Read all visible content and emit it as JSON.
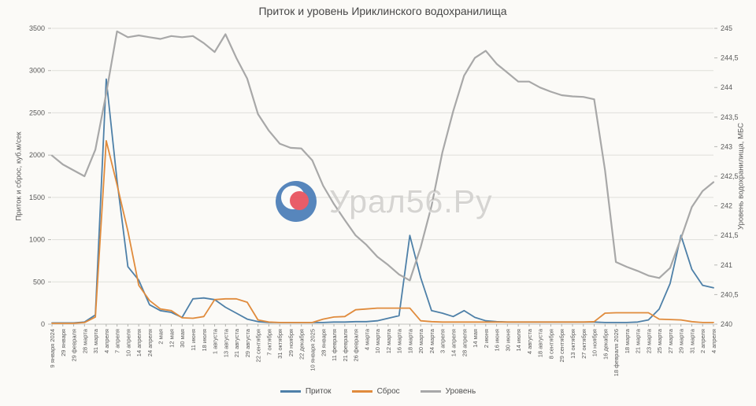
{
  "watermark": {
    "text": "Урал56.Ру",
    "logo": "ural56-logo-icon",
    "logo_colors": {
      "blue": "#4a7db8",
      "white": "#fcfcfb",
      "red": "#e8505c"
    }
  },
  "chart_data": {
    "type": "line",
    "title": "Приток и уровень Ириклинского водохранилища",
    "grid": true,
    "legend_position": "bottom",
    "left_axis": {
      "label": "Приток и сброс, куб.м/сек",
      "min": 0,
      "max": 3500,
      "ticks": [
        "0",
        "500",
        "1000",
        "1500",
        "2000",
        "2500",
        "3000",
        "3500"
      ]
    },
    "right_axis": {
      "label": "Уровень водохранилища, МБС",
      "min": 240,
      "max": 245,
      "ticks": [
        "240",
        "240,5",
        "241",
        "241,5",
        "242",
        "242,5",
        "243",
        "243,5",
        "244",
        "244,5",
        "245"
      ]
    },
    "categories": [
      "9 января 2024",
      "29 января",
      "29 февраля",
      "28 марта",
      "31 марта",
      "4 апреля",
      "7 апреля",
      "10 апреля",
      "14 апреля",
      "24 апреля",
      "2 мая",
      "12 мая",
      "30 мая",
      "11 июня",
      "18 июля",
      "1 августа",
      "13 августа",
      "21 августа",
      "29 августа",
      "22 сентября",
      "7 октября",
      "31 октября",
      "29 ноября",
      "22 декабря",
      "10 января 2025",
      "28 января",
      "11 февраля",
      "21 февраля",
      "26 февраля",
      "4 марта",
      "10 марта",
      "12 марта",
      "16 марта",
      "18 марта",
      "20 марта",
      "24 марта",
      "3 апреля",
      "14 апреля",
      "28 апреля",
      "14 мая",
      "2 июня",
      "16 июня",
      "30 июня",
      "14 июля",
      "4 августа",
      "18 августа",
      "8 сентября",
      "29 сентября",
      "13 октября",
      "27 октября",
      "10 ноября",
      "16 декабря",
      "18 февраля 2026",
      "18 марта",
      "21 марта",
      "23 марта",
      "25 марта",
      "27 марта",
      "29 марта",
      "31 марта",
      "2 апреля",
      "4 апреля"
    ],
    "series": [
      {
        "name": "Приток",
        "axis": "left",
        "color": "#4e80a8",
        "values": [
          15,
          15,
          15,
          25,
          110,
          2900,
          1700,
          680,
          520,
          230,
          160,
          140,
          80,
          300,
          310,
          290,
          200,
          130,
          60,
          30,
          20,
          20,
          20,
          20,
          20,
          20,
          25,
          25,
          30,
          30,
          40,
          70,
          100,
          1050,
          550,
          160,
          130,
          90,
          160,
          80,
          40,
          30,
          25,
          25,
          25,
          25,
          25,
          25,
          25,
          25,
          25,
          20,
          20,
          20,
          25,
          50,
          180,
          480,
          1050,
          650,
          460,
          430
        ]
      },
      {
        "name": "Сброс",
        "axis": "left",
        "color": "#e08b3c",
        "values": [
          10,
          10,
          10,
          20,
          85,
          2170,
          1650,
          1100,
          460,
          280,
          180,
          160,
          75,
          70,
          90,
          290,
          300,
          300,
          260,
          50,
          25,
          20,
          20,
          20,
          20,
          60,
          85,
          90,
          170,
          180,
          190,
          190,
          190,
          190,
          40,
          30,
          25,
          25,
          25,
          25,
          25,
          25,
          25,
          25,
          25,
          25,
          25,
          25,
          25,
          25,
          30,
          130,
          135,
          135,
          135,
          135,
          60,
          55,
          50,
          30,
          20,
          20
        ]
      },
      {
        "name": "Уровень",
        "axis": "right",
        "color": "#a8a8a8",
        "values": [
          242.85,
          242.7,
          242.6,
          242.5,
          242.95,
          243.9,
          244.95,
          244.85,
          244.88,
          244.85,
          244.82,
          244.87,
          244.85,
          244.87,
          244.75,
          244.6,
          244.9,
          244.5,
          244.15,
          243.55,
          243.27,
          243.05,
          242.98,
          242.97,
          242.77,
          242.34,
          242.03,
          241.76,
          241.5,
          241.34,
          241.14,
          241.0,
          240.84,
          240.74,
          241.3,
          242.0,
          242.9,
          243.6,
          244.2,
          244.5,
          244.62,
          244.4,
          244.25,
          244.1,
          244.1,
          244.0,
          243.93,
          243.87,
          243.85,
          243.84,
          243.8,
          242.6,
          241.05,
          240.97,
          240.9,
          240.82,
          240.78,
          240.95,
          241.45,
          241.98,
          242.25,
          242.4
        ]
      }
    ]
  }
}
